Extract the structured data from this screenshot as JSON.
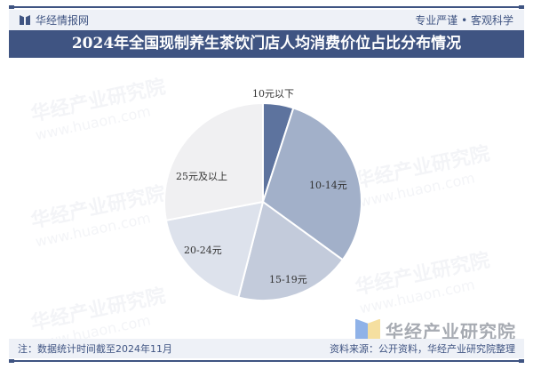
{
  "header": {
    "brand": "华经情报网",
    "slogan": "专业严谨 • 客观科学"
  },
  "title": "2024年全国现制养生茶饮门店人均消费价位占比分布情况",
  "watermark": {
    "text": "华经产业研究院",
    "url": "www.huaon.com"
  },
  "footer": {
    "note": "注：数据统计时间截至2024年11月",
    "source": "资料来源：公开资料，华经产业研究院整理"
  },
  "logo": {
    "text": "华经产业研究院"
  },
  "colors": {
    "brand": "#3f5482",
    "slices": [
      "#5d739e",
      "#a2b0c9",
      "#c3cbdb",
      "#dde2ec",
      "#f0f0f2"
    ]
  },
  "chart_data": {
    "type": "pie",
    "title": "2024年全国现制养生茶饮门店人均消费价位占比分布情况",
    "categories": [
      "10元以下",
      "10-14元",
      "15-19元",
      "20-24元",
      "25元及以上"
    ],
    "values": [
      5,
      30,
      19,
      18,
      28
    ],
    "unit": "%",
    "start_angle": "12 o'clock, clockwise",
    "legend": "none (labels on slices)",
    "data_labels_shown": false
  }
}
